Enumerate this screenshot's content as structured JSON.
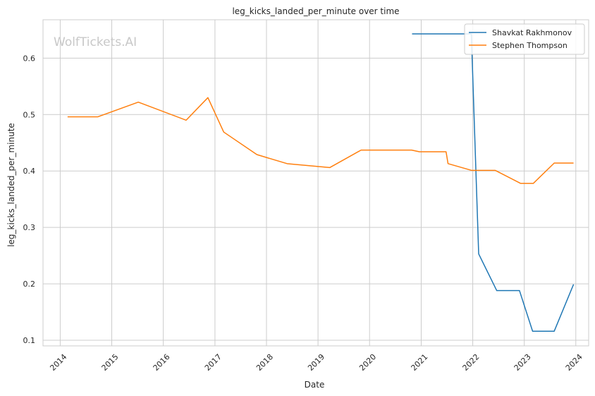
{
  "chart_data": {
    "type": "line",
    "title": "leg_kicks_landed_per_minute over time",
    "xlabel": "Date",
    "ylabel": "leg_kicks_landed_per_minute",
    "watermark": "WolfTickets.AI",
    "x_ticks": [
      "2014",
      "2015",
      "2016",
      "2017",
      "2018",
      "2019",
      "2020",
      "2021",
      "2022",
      "2023",
      "2024"
    ],
    "y_ticks": [
      "0.1",
      "0.2",
      "0.3",
      "0.4",
      "0.5",
      "0.6"
    ],
    "xlim": [
      "2013-09-01",
      "2024-04-01"
    ],
    "ylim": [
      0.09,
      0.668
    ],
    "grid": true,
    "legend_position": "top-right",
    "series": [
      {
        "name": "Shavkat Rakhmonov",
        "color": "#1f77b4",
        "points": [
          [
            "2020-10-28",
            0.643
          ],
          [
            "2021-12-22",
            0.643
          ],
          [
            "2022-02-12",
            0.253
          ],
          [
            "2022-06-20",
            0.188
          ],
          [
            "2022-11-28",
            0.188
          ],
          [
            "2023-03-01",
            0.116
          ],
          [
            "2023-08-01",
            0.116
          ],
          [
            "2023-12-16",
            0.199
          ]
        ]
      },
      {
        "name": "Stephen Thompson",
        "color": "#ff7f0e",
        "points": [
          [
            "2014-02-22",
            0.496
          ],
          [
            "2014-09-25",
            0.496
          ],
          [
            "2015-07-08",
            0.522
          ],
          [
            "2016-06-11",
            0.49
          ],
          [
            "2016-11-12",
            0.53
          ],
          [
            "2017-03-04",
            0.469
          ],
          [
            "2017-10-25",
            0.429
          ],
          [
            "2018-05-27",
            0.413
          ],
          [
            "2019-03-25",
            0.406
          ],
          [
            "2019-11-02",
            0.437
          ],
          [
            "2020-10-25",
            0.437
          ],
          [
            "2020-12-19",
            0.434
          ],
          [
            "2021-06-26",
            0.434
          ],
          [
            "2021-07-10",
            0.413
          ],
          [
            "2021-12-25",
            0.401
          ],
          [
            "2022-06-10",
            0.401
          ],
          [
            "2022-12-06",
            0.378
          ],
          [
            "2023-03-06",
            0.378
          ],
          [
            "2023-08-01",
            0.414
          ],
          [
            "2023-12-16",
            0.414
          ]
        ]
      }
    ]
  }
}
